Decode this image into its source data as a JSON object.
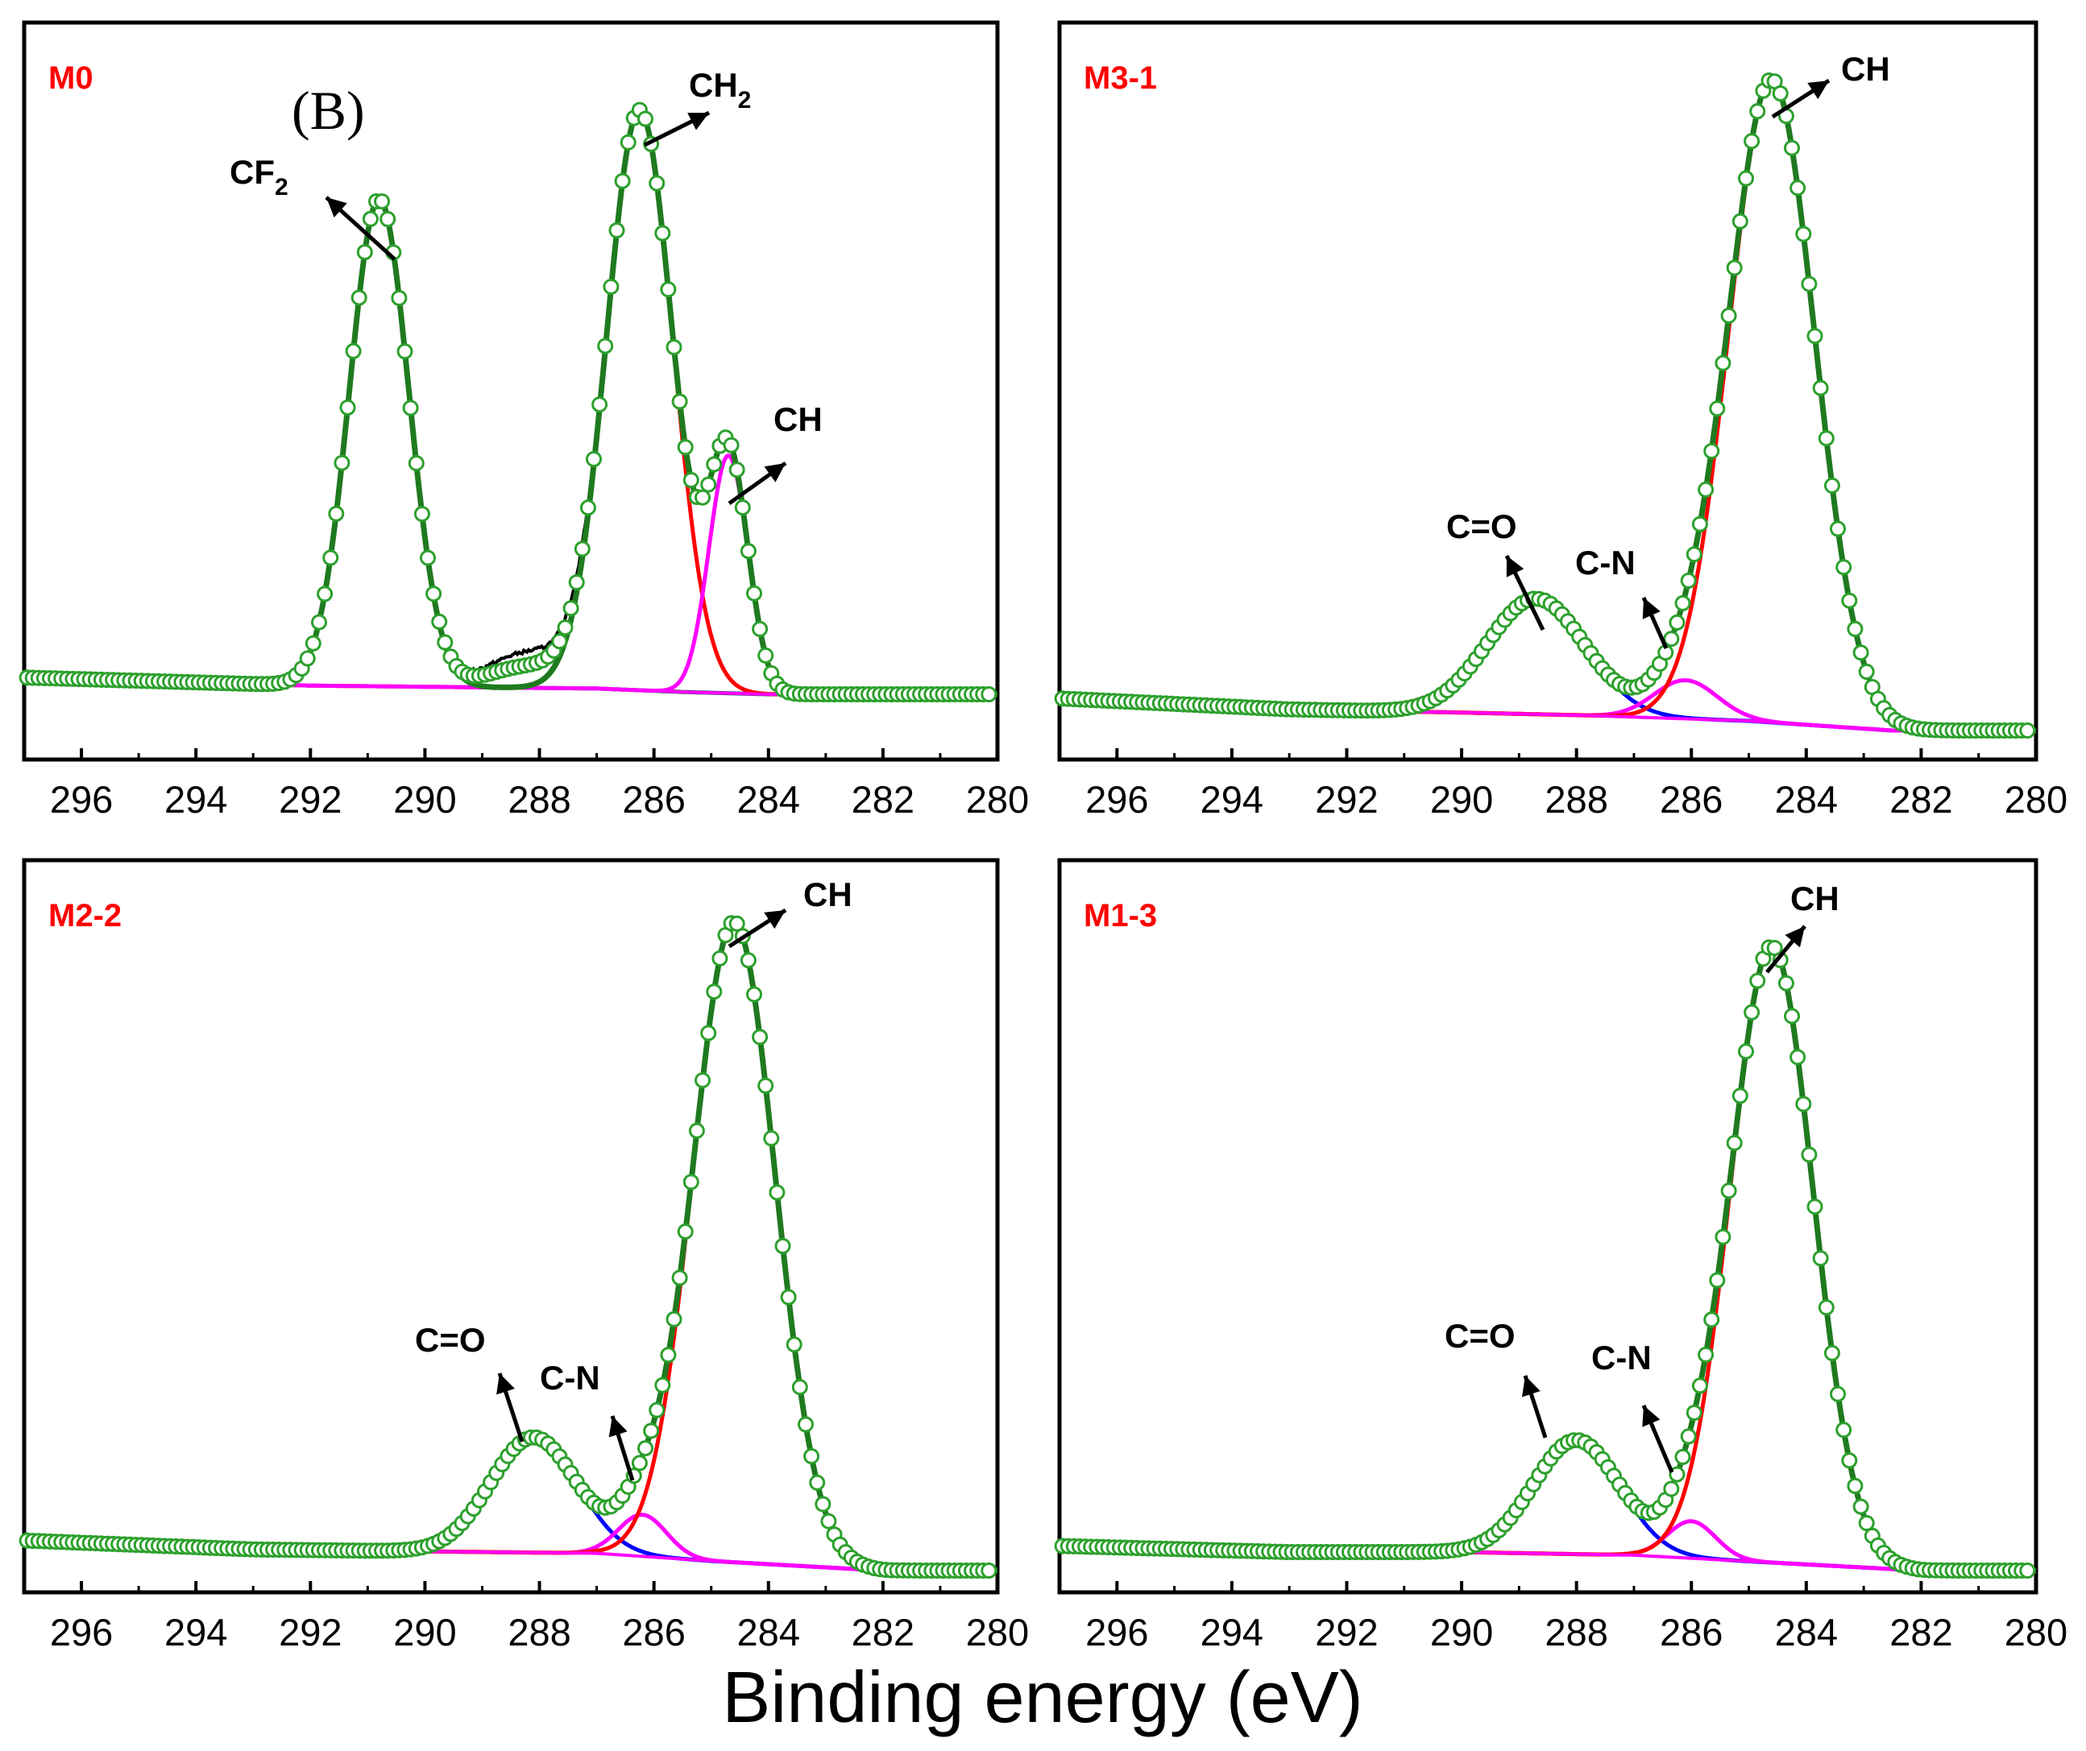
{
  "figure": {
    "panel_tag": "(B)",
    "xlabel": "Binding energy (eV)"
  },
  "colors": {
    "raw": "#000000",
    "envelope": "#1f7a1f",
    "envelope_dark": "#1a4f4f",
    "markers_edge": "#2ca02c",
    "markers_fill": "#ffffff",
    "red": "#ff0000",
    "magenta": "#ff00ff",
    "blue": "#0000ff",
    "label_red": "#ff0000"
  },
  "chart_data": [
    {
      "type": "line",
      "id": "m0",
      "title": "M0",
      "xlabel": "",
      "ylabel": "",
      "xlim": [
        297,
        280
      ],
      "ylim": [
        0,
        1.07
      ],
      "x_ticks": [
        "296",
        "294",
        "292",
        "290",
        "288",
        "286",
        "284",
        "282",
        "280"
      ],
      "baseline": [
        [
          297,
          0.047
        ],
        [
          292,
          0.033
        ],
        [
          289,
          0.03
        ],
        [
          287,
          0.028
        ],
        [
          285.5,
          0.022
        ],
        [
          284,
          0.018
        ],
        [
          280,
          0.018
        ]
      ],
      "series": [
        {
          "name": "CF2",
          "color": "envelope_dark",
          "center": 290.8,
          "height": 0.84,
          "width": 0.52
        },
        {
          "name": "CH2",
          "color": "red",
          "center": 286.25,
          "height": 1.0,
          "width": 0.58
        },
        {
          "name": "CH",
          "color": "magenta",
          "center": 284.7,
          "height": 0.41,
          "width": 0.34
        }
      ],
      "raw_extra": [
        {
          "center": 288.2,
          "height": 0.06,
          "width": 0.7
        }
      ],
      "annotations": [
        {
          "text": "CF2",
          "sub": "2",
          "main": "CF",
          "x": 290.8,
          "y": 0.84
        },
        {
          "text": "CH2",
          "sub": "2",
          "main": "CH",
          "x": 286.25,
          "y": 1.0
        },
        {
          "text": "CH",
          "sub": "",
          "main": "CH",
          "x": 284.7,
          "y": 0.35
        }
      ]
    },
    {
      "type": "line",
      "id": "m3-1",
      "title": "M3-1",
      "xlabel": "",
      "ylabel": "",
      "xlim": [
        297,
        280
      ],
      "ylim": [
        0,
        1.07
      ],
      "x_ticks": [
        "296",
        "294",
        "292",
        "290",
        "288",
        "286",
        "284",
        "282",
        "280"
      ],
      "baseline": [
        [
          297,
          0.06
        ],
        [
          293,
          0.043
        ],
        [
          290,
          0.038
        ],
        [
          288,
          0.034
        ],
        [
          285,
          0.025
        ],
        [
          282.5,
          0.01
        ],
        [
          280,
          0.01
        ]
      ],
      "series": [
        {
          "name": "C=O",
          "color": "blue",
          "center": 288.7,
          "height": 0.18,
          "width": 0.85
        },
        {
          "name": "C-N",
          "color": "magenta",
          "center": 286.1,
          "height": 0.06,
          "width": 0.55
        },
        {
          "name": "CH",
          "color": "red",
          "center": 284.6,
          "height": 1.0,
          "width": 0.75
        }
      ],
      "raw_extra": [],
      "annotations": [
        {
          "text": "C=O",
          "sub": "",
          "main": "C=O",
          "x": 288.4,
          "y": 0.2
        },
        {
          "text": "C-N",
          "sub": "",
          "main": "C-N",
          "x": 286.4,
          "y": 0.12
        },
        {
          "text": "CH",
          "sub": "",
          "main": "CH",
          "x": 284.6,
          "y": 1.0
        }
      ]
    },
    {
      "type": "line",
      "id": "m2-2",
      "title": "M2-2",
      "xlabel": "",
      "ylabel": "",
      "xlim": [
        297,
        280
      ],
      "ylim": [
        0,
        1.07
      ],
      "x_ticks": [
        "296",
        "294",
        "292",
        "290",
        "288",
        "286",
        "284",
        "282",
        "280"
      ],
      "baseline": [
        [
          297,
          0.047
        ],
        [
          293,
          0.033
        ],
        [
          290,
          0.03
        ],
        [
          287,
          0.027
        ],
        [
          285,
          0.015
        ],
        [
          282,
          0.0
        ],
        [
          280,
          0.0
        ]
      ],
      "series": [
        {
          "name": "C=O",
          "color": "blue",
          "center": 288.1,
          "height": 0.18,
          "width": 0.75
        },
        {
          "name": "C-N",
          "color": "magenta",
          "center": 286.2,
          "height": 0.065,
          "width": 0.42
        },
        {
          "name": "CH",
          "color": "red",
          "center": 284.6,
          "height": 1.0,
          "width": 0.72
        }
      ],
      "raw_extra": [],
      "annotations": [
        {
          "text": "C=O",
          "sub": "",
          "main": "C=O",
          "x": 288.1,
          "y": 0.19
        },
        {
          "text": "C-N",
          "sub": "",
          "main": "C-N",
          "x": 286.4,
          "y": 0.09
        },
        {
          "text": "CH",
          "sub": "",
          "main": "CH",
          "x": 284.6,
          "y": 1.0
        }
      ]
    },
    {
      "type": "line",
      "id": "m1-3",
      "title": "M1-3",
      "xlabel": "",
      "ylabel": "",
      "xlim": [
        297,
        280
      ],
      "ylim": [
        0,
        1.07
      ],
      "x_ticks": [
        "296",
        "294",
        "292",
        "290",
        "288",
        "286",
        "284",
        "282",
        "280"
      ],
      "baseline": [
        [
          297,
          0.04
        ],
        [
          293,
          0.03
        ],
        [
          290,
          0.03
        ],
        [
          287,
          0.025
        ],
        [
          285,
          0.015
        ],
        [
          282,
          0.0
        ],
        [
          280,
          0.0
        ]
      ],
      "series": [
        {
          "name": "C=O",
          "color": "blue",
          "center": 288.0,
          "height": 0.185,
          "width": 0.75
        },
        {
          "name": "C-N",
          "color": "magenta",
          "center": 286.0,
          "height": 0.06,
          "width": 0.42
        },
        {
          "name": "CH",
          "color": "red",
          "center": 284.6,
          "height": 1.0,
          "width": 0.72
        }
      ],
      "raw_extra": [],
      "annotations": [
        {
          "text": "C=O",
          "sub": "",
          "main": "C=O",
          "x": 288.0,
          "y": 0.2
        },
        {
          "text": "C-N",
          "sub": "",
          "main": "C-N",
          "x": 286.4,
          "y": 0.1
        },
        {
          "text": "CH",
          "sub": "",
          "main": "CH",
          "x": 284.6,
          "y": 1.0
        }
      ]
    }
  ]
}
